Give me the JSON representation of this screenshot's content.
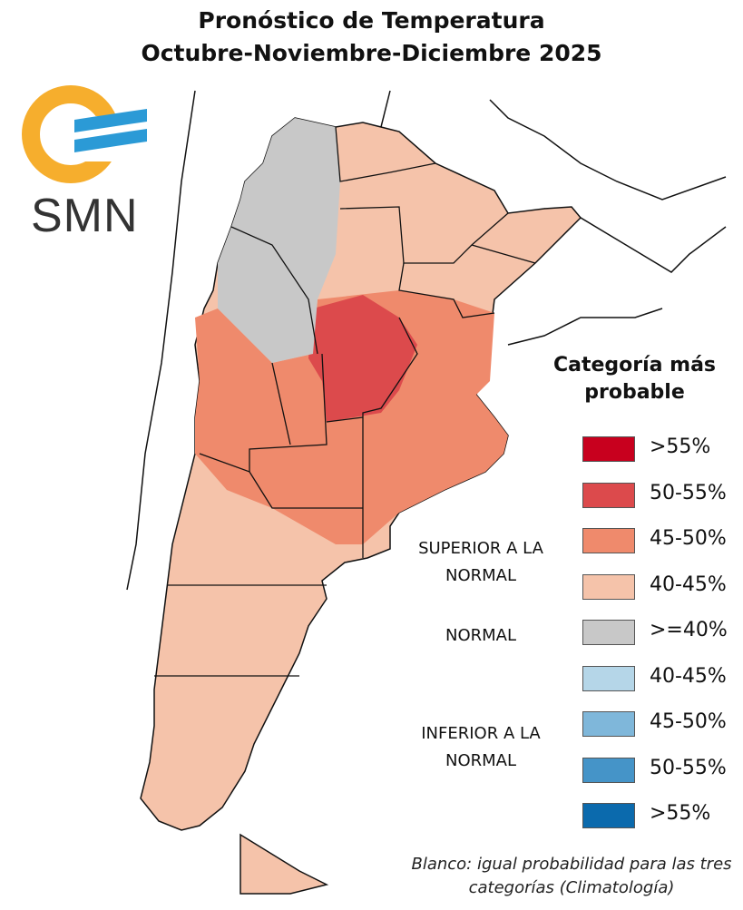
{
  "title": {
    "line1": "Pronóstico de Temperatura",
    "line2": "Octubre-Noviembre-Diciembre 2025"
  },
  "logo": {
    "text": "SMN",
    "colors": {
      "sun": "#f6ae2d",
      "waves": "#2b9ad6"
    }
  },
  "legend": {
    "title": "Categoría más probable",
    "groups": [
      {
        "label": "SUPERIOR A LA NORMAL"
      },
      {
        "label": "NORMAL"
      },
      {
        "label": "INFERIOR A LA NORMAL"
      }
    ],
    "items": [
      {
        "label": ">55%",
        "color": "#c8001e"
      },
      {
        "label": "50-55%",
        "color": "#dc4a4c"
      },
      {
        "label": "45-50%",
        "color": "#ef8a6c"
      },
      {
        "label": "40-45%",
        "color": "#f5c3aa"
      },
      {
        "label": ">=40%",
        "color": "#c8c8c8"
      },
      {
        "label": "40-45%",
        "color": "#b5d6e8"
      },
      {
        "label": "45-50%",
        "color": "#7fb7da"
      },
      {
        "label": "50-55%",
        "color": "#4594c8"
      },
      {
        "label": ">55%",
        "color": "#0b6aad"
      }
    ],
    "note": "Blanco: igual probabilidad para las tres categorías (Climatología)"
  }
}
